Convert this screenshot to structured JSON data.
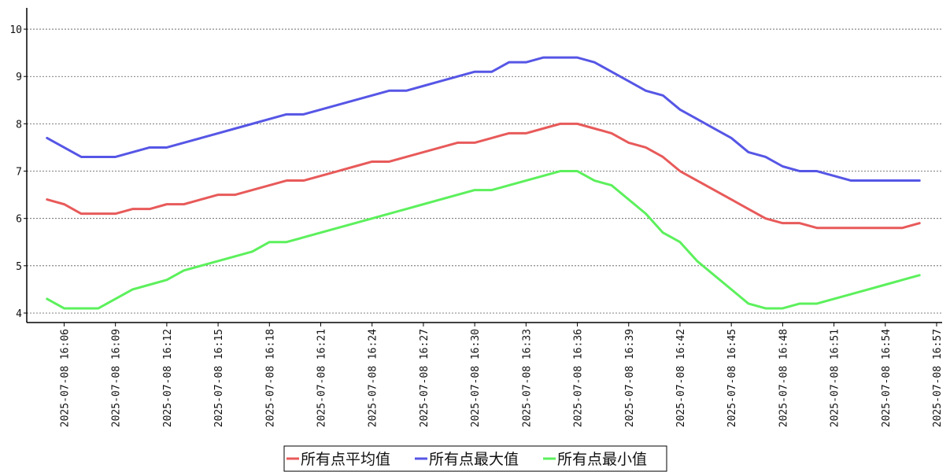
{
  "chart_data": {
    "type": "line",
    "grid": true,
    "legend_position": "bottom-center",
    "xlim": [
      "2025-07-08 16:04",
      "2025-07-08 16:57"
    ],
    "ylim": [
      3.8,
      10.45
    ],
    "y_ticks": [
      "4",
      "5",
      "6",
      "7",
      "8",
      "9",
      "10"
    ],
    "x_ticks": [
      "2025-07-08 16:06",
      "2025-07-08 16:09",
      "2025-07-08 16:12",
      "2025-07-08 16:15",
      "2025-07-08 16:18",
      "2025-07-08 16:21",
      "2025-07-08 16:24",
      "2025-07-08 16:27",
      "2025-07-08 16:30",
      "2025-07-08 16:33",
      "2025-07-08 16:36",
      "2025-07-08 16:39",
      "2025-07-08 16:42",
      "2025-07-08 16:45",
      "2025-07-08 16:48",
      "2025-07-08 16:51",
      "2025-07-08 16:54",
      "2025-07-08 16:57"
    ],
    "x": [
      "2025-07-08 16:05",
      "2025-07-08 16:06",
      "2025-07-08 16:07",
      "2025-07-08 16:08",
      "2025-07-08 16:09",
      "2025-07-08 16:10",
      "2025-07-08 16:11",
      "2025-07-08 16:12",
      "2025-07-08 16:13",
      "2025-07-08 16:14",
      "2025-07-08 16:15",
      "2025-07-08 16:16",
      "2025-07-08 16:17",
      "2025-07-08 16:18",
      "2025-07-08 16:19",
      "2025-07-08 16:20",
      "2025-07-08 16:21",
      "2025-07-08 16:22",
      "2025-07-08 16:23",
      "2025-07-08 16:24",
      "2025-07-08 16:25",
      "2025-07-08 16:26",
      "2025-07-08 16:27",
      "2025-07-08 16:28",
      "2025-07-08 16:29",
      "2025-07-08 16:30",
      "2025-07-08 16:31",
      "2025-07-08 16:32",
      "2025-07-08 16:33",
      "2025-07-08 16:34",
      "2025-07-08 16:35",
      "2025-07-08 16:36",
      "2025-07-08 16:37",
      "2025-07-08 16:38",
      "2025-07-08 16:39",
      "2025-07-08 16:40",
      "2025-07-08 16:41",
      "2025-07-08 16:42",
      "2025-07-08 16:43",
      "2025-07-08 16:44",
      "2025-07-08 16:45",
      "2025-07-08 16:46",
      "2025-07-08 16:47",
      "2025-07-08 16:48",
      "2025-07-08 16:49",
      "2025-07-08 16:50",
      "2025-07-08 16:51",
      "2025-07-08 16:52",
      "2025-07-08 16:53",
      "2025-07-08 16:54",
      "2025-07-08 16:55",
      "2025-07-08 16:56"
    ],
    "series": [
      {
        "name": "所有点平均值",
        "color": "#e85a5a",
        "values": [
          6.4,
          6.3,
          6.1,
          6.1,
          6.1,
          6.2,
          6.2,
          6.3,
          6.3,
          6.4,
          6.5,
          6.5,
          6.6,
          6.7,
          6.8,
          6.8,
          6.9,
          7.0,
          7.1,
          7.2,
          7.2,
          7.3,
          7.4,
          7.5,
          7.6,
          7.6,
          7.7,
          7.8,
          7.8,
          7.9,
          8.0,
          8.0,
          7.9,
          7.8,
          7.6,
          7.5,
          7.3,
          7.0,
          6.8,
          6.6,
          6.4,
          6.2,
          6.0,
          5.9,
          5.9,
          5.8,
          5.8,
          5.8,
          5.8,
          5.8,
          5.8,
          5.9
        ]
      },
      {
        "name": "所有点最大值",
        "color": "#5656e6",
        "values": [
          7.7,
          7.5,
          7.3,
          7.3,
          7.3,
          7.4,
          7.5,
          7.5,
          7.6,
          7.7,
          7.8,
          7.9,
          8.0,
          8.1,
          8.2,
          8.2,
          8.3,
          8.4,
          8.5,
          8.6,
          8.7,
          8.7,
          8.8,
          8.9,
          9.0,
          9.1,
          9.1,
          9.3,
          9.3,
          9.4,
          9.4,
          9.4,
          9.3,
          9.1,
          8.9,
          8.7,
          8.6,
          8.3,
          8.1,
          7.9,
          7.7,
          7.4,
          7.3,
          7.1,
          7.0,
          7.0,
          6.9,
          6.8,
          6.8,
          6.8,
          6.8,
          6.8
        ]
      },
      {
        "name": "所有点最小值",
        "color": "#5cf05c",
        "values": [
          4.3,
          4.1,
          4.1,
          4.1,
          4.3,
          4.5,
          4.6,
          4.7,
          4.9,
          5.0,
          5.1,
          5.2,
          5.3,
          5.5,
          5.5,
          5.6,
          5.7,
          5.8,
          5.9,
          6.0,
          6.1,
          6.2,
          6.3,
          6.4,
          6.5,
          6.6,
          6.6,
          6.7,
          6.8,
          6.9,
          7.0,
          7.0,
          6.8,
          6.7,
          6.4,
          6.1,
          5.7,
          5.5,
          5.1,
          4.8,
          4.5,
          4.2,
          4.1,
          4.1,
          4.2,
          4.2,
          4.3,
          4.4,
          4.5,
          4.6,
          4.7,
          4.8
        ]
      }
    ]
  }
}
